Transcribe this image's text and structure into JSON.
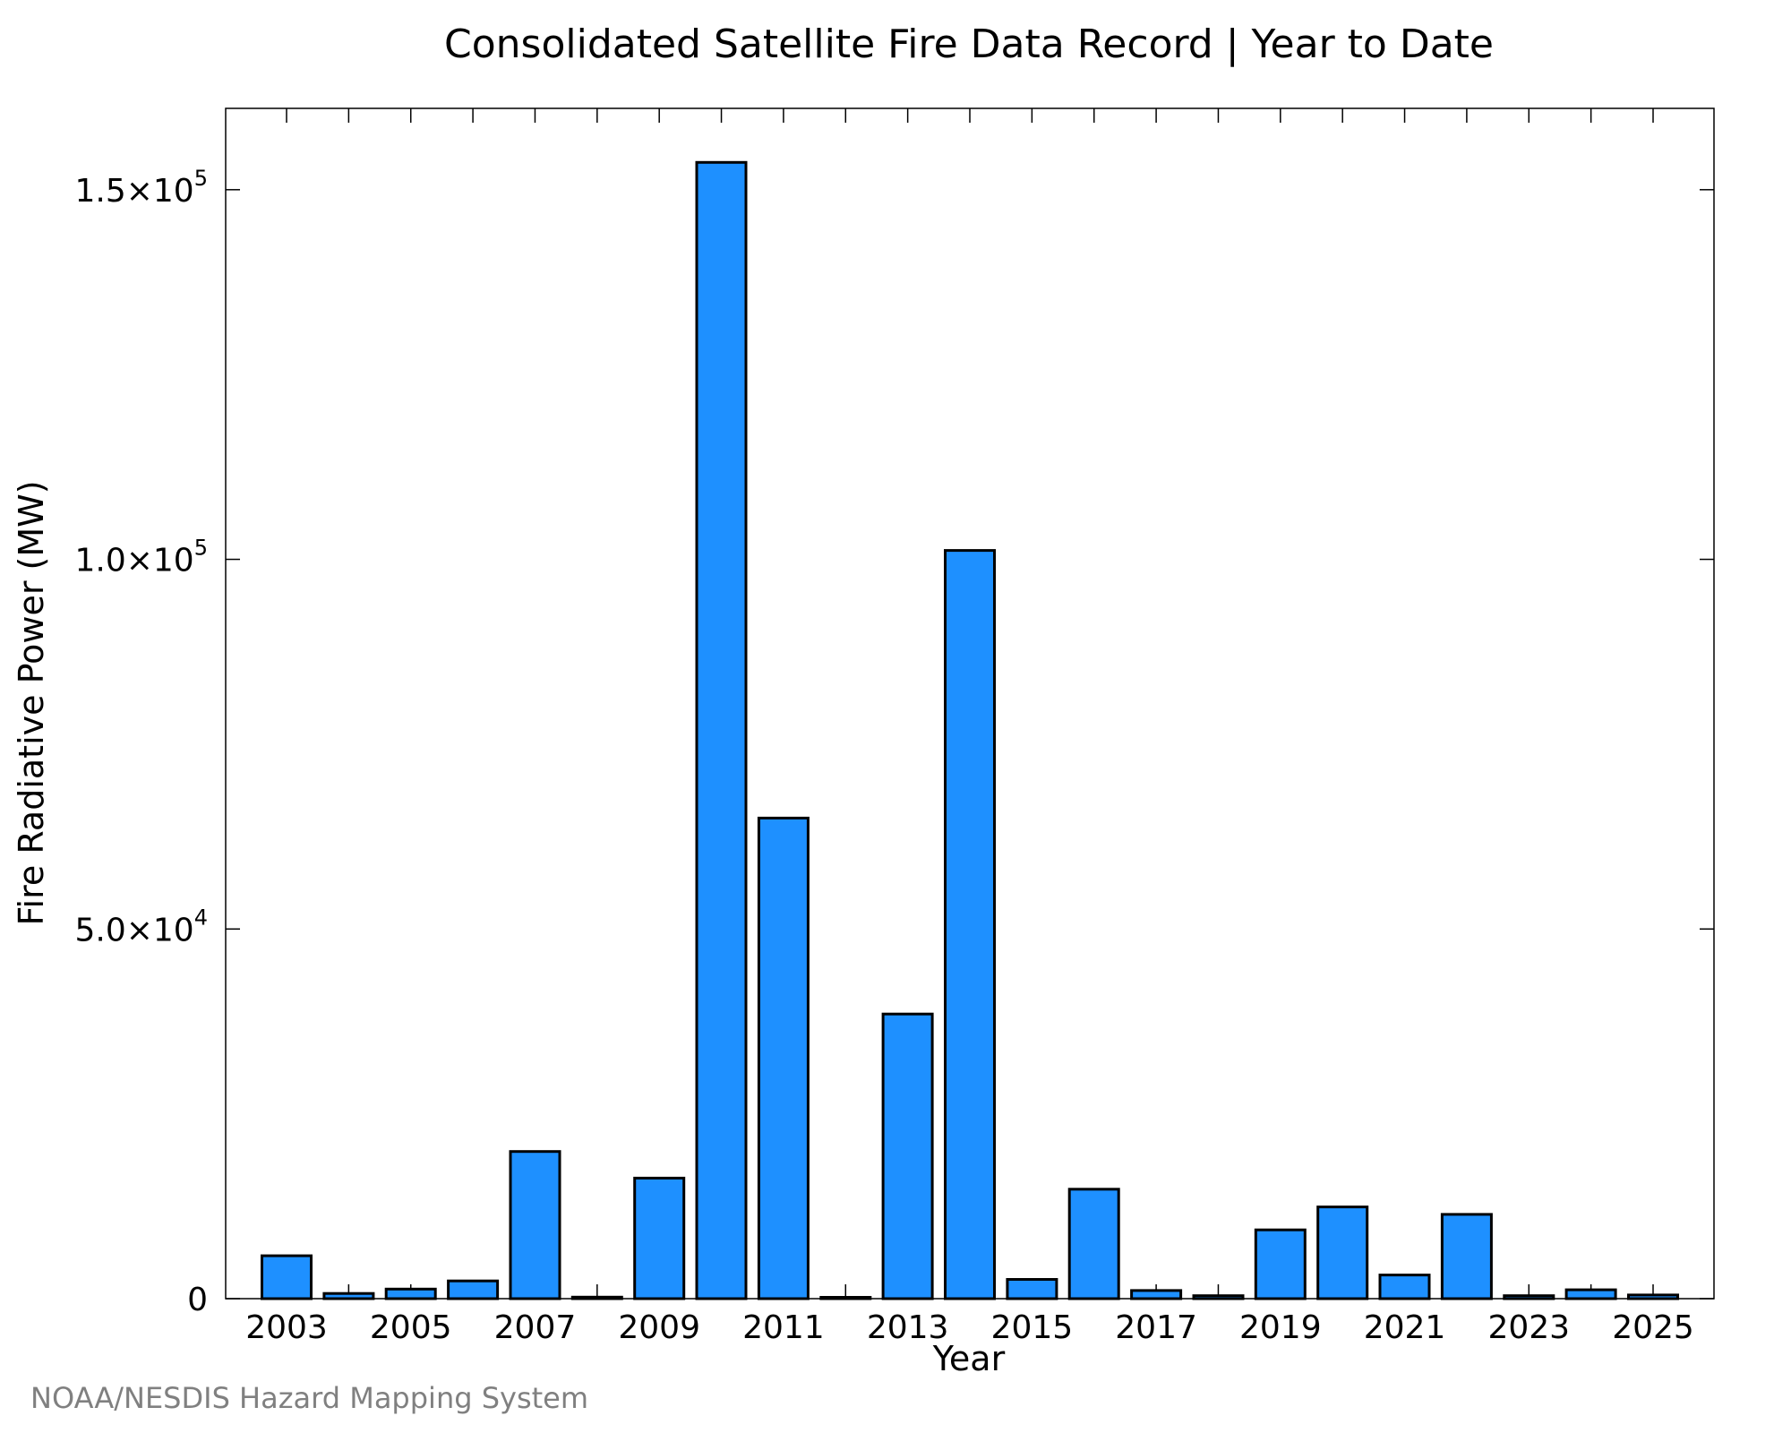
{
  "chart_data": {
    "type": "bar",
    "title": "Consolidated Satellite Fire Data Record | Year to Date",
    "xlabel": "Year",
    "ylabel": "Fire Radiative Power (MW)",
    "ylim": [
      0,
      161000
    ],
    "categories": [
      2003,
      2004,
      2005,
      2006,
      2007,
      2008,
      2009,
      2010,
      2011,
      2012,
      2013,
      2014,
      2015,
      2016,
      2017,
      2018,
      2019,
      2020,
      2021,
      2022,
      2023,
      2024,
      2025
    ],
    "values": [
      5800,
      700,
      1300,
      2400,
      19900,
      200,
      16300,
      153700,
      65000,
      100,
      38500,
      101200,
      2600,
      14800,
      1100,
      400,
      9300,
      12400,
      3200,
      11400,
      400,
      1200,
      500
    ],
    "x_tick_labels": [
      "2003",
      "2005",
      "2007",
      "2009",
      "2011",
      "2013",
      "2015",
      "2017",
      "2019",
      "2021",
      "2023",
      "2025"
    ],
    "y_ticks": [
      {
        "value": 0,
        "mantissa": "0",
        "exponent": ""
      },
      {
        "value": 50000,
        "mantissa": "5.0×10",
        "exponent": "4"
      },
      {
        "value": 100000,
        "mantissa": "1.0×10",
        "exponent": "5"
      },
      {
        "value": 150000,
        "mantissa": "1.5×10",
        "exponent": "5"
      }
    ],
    "grid": false,
    "legend": "none",
    "bar_color": "#1e90ff",
    "edge_color": "#000000"
  },
  "credit": "NOAA/NESDIS Hazard Mapping System"
}
